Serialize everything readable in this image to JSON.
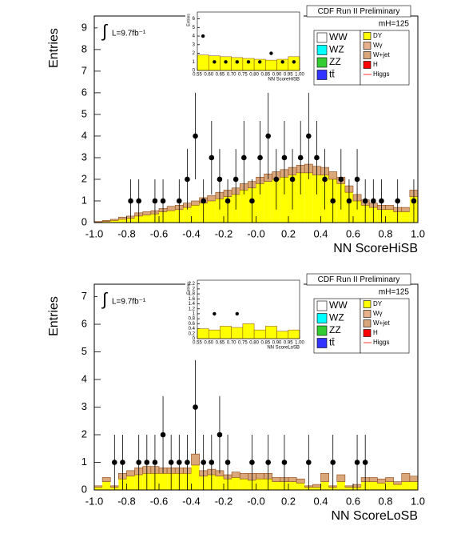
{
  "chart_data": [
    {
      "type": "stacked-histogram",
      "header": "CDF Run II Preliminary",
      "lumi_symbol": "∫",
      "lumi": "L=9.7fb⁻¹",
      "mass": "mH=125",
      "x_label": "NN ScoreHiSB",
      "y_label": "Entries",
      "xlim": [
        -1,
        1
      ],
      "xticks": [
        {
          "value": -1,
          "label": "-1.0"
        },
        -0.8,
        -0.6,
        -0.4,
        -0.2,
        {
          "value": 0,
          "label": "-0.0"
        },
        0.2,
        0.4,
        0.6,
        0.8,
        {
          "value": 1,
          "label": "1.0"
        }
      ],
      "ylim": [
        0,
        9.55
      ],
      "yticks": [
        0,
        1,
        2,
        3,
        4,
        5,
        6,
        7,
        8,
        9
      ],
      "bins": [
        -1,
        -0.95,
        -0.9,
        -0.85,
        -0.8,
        -0.75,
        -0.7,
        -0.65,
        -0.6,
        -0.55,
        -0.5,
        -0.45,
        -0.4,
        -0.35,
        -0.3,
        -0.25,
        -0.2,
        -0.15,
        -0.1,
        -0.05,
        0,
        0.05,
        0.1,
        0.15,
        0.2,
        0.25,
        0.3,
        0.35,
        0.4,
        0.45,
        0.5,
        0.55,
        0.6,
        0.65,
        0.7,
        0.75,
        0.8,
        0.85,
        0.9,
        0.95,
        1
      ],
      "series": [
        {
          "name": "DY",
          "color": "#ffff00",
          "values": [
            0.02,
            0.05,
            0.1,
            0.15,
            0.2,
            0.3,
            0.35,
            0.4,
            0.5,
            0.55,
            0.6,
            0.7,
            0.8,
            0.9,
            1.0,
            1.1,
            1.2,
            1.3,
            1.5,
            1.6,
            1.8,
            1.9,
            2.0,
            2.1,
            2.2,
            2.3,
            2.3,
            2.2,
            2.2,
            2.0,
            1.8,
            1.4,
            1.0,
            0.8,
            0.7,
            0.6,
            0.6,
            0.5,
            0.5,
            1.2
          ]
        },
        {
          "name": "W+jet",
          "color": "#d9a77a",
          "values": [
            0.03,
            0.05,
            0.05,
            0.1,
            0.1,
            0.15,
            0.15,
            0.15,
            0.15,
            0.2,
            0.2,
            0.2,
            0.2,
            0.25,
            0.25,
            0.3,
            0.3,
            0.3,
            0.3,
            0.3,
            0.3,
            0.35,
            0.35,
            0.35,
            0.35,
            0.35,
            0.4,
            0.4,
            0.35,
            0.35,
            0.3,
            0.3,
            0.3,
            0.25,
            0.2,
            0.2,
            0.2,
            0.2,
            0.2,
            0.3
          ]
        }
      ],
      "data": {
        "values": [
          null,
          null,
          null,
          null,
          1,
          1,
          null,
          1,
          1,
          null,
          1,
          2,
          4,
          1,
          3,
          2,
          1,
          2,
          3,
          1,
          3,
          4,
          2,
          3,
          2,
          3,
          4,
          3,
          2,
          1,
          2,
          1,
          2,
          1,
          1,
          1,
          null,
          1,
          null,
          1
        ],
        "errors": [
          null,
          null,
          null,
          null,
          1,
          1,
          null,
          1,
          1,
          null,
          1,
          1.4,
          2,
          1,
          1.7,
          1.4,
          1,
          1.4,
          1.7,
          1,
          1.7,
          2,
          1.4,
          1.7,
          1.4,
          1.7,
          2,
          1.7,
          1.4,
          1,
          1.4,
          1,
          1.4,
          1,
          1,
          1,
          null,
          1,
          null,
          1
        ]
      },
      "legend": [
        {
          "name": "WW",
          "color": "#ffffff"
        },
        {
          "name": "WZ",
          "color": "#00ffff"
        },
        {
          "name": "ZZ",
          "color": "#33cc33"
        },
        {
          "name": "tt̄",
          "color": "#3333ff"
        },
        {
          "name": "DY",
          "color": "#ffff00"
        },
        {
          "name": "Wγ",
          "color": "#e8b08a"
        },
        {
          "name": "W+jet",
          "color": "#d9a77a"
        },
        {
          "name": "H",
          "color": "#ff0000"
        },
        {
          "name": "Higgs",
          "color": "#ff0000",
          "style": "line"
        }
      ],
      "inset": {
        "x_label": "NN ScoreHiSB",
        "y_label": "Entries",
        "color": "#ffff00",
        "xlim": [
          0.55,
          1
        ],
        "xticks": [
          0.55,
          {
            "value": 0.6,
            "label": "0.60"
          },
          0.65,
          {
            "value": 0.7,
            "label": "0.70"
          },
          0.75,
          {
            "value": 0.8,
            "label": "0.80"
          },
          0.85,
          {
            "value": 0.9,
            "label": "0.90"
          },
          0.95,
          {
            "value": 1,
            "label": "1.00"
          }
        ],
        "ylim": [
          0,
          6.8
        ],
        "yticks": [
          0,
          1,
          2,
          3,
          4,
          5,
          6
        ],
        "bins": [
          0.55,
          0.6,
          0.65,
          0.7,
          0.75,
          0.8,
          0.85,
          0.9,
          0.95,
          1
        ],
        "values": [
          1.8,
          1.7,
          1.6,
          1.5,
          1.4,
          1.3,
          1.2,
          1.3,
          1.6
        ],
        "data": [
          4,
          1,
          1,
          1,
          1,
          1,
          2,
          1,
          1
        ]
      }
    },
    {
      "type": "stacked-histogram",
      "header": "CDF Run II Preliminary",
      "lumi_symbol": "∫",
      "lumi": "L=9.7fb⁻¹",
      "mass": "mH=125",
      "x_label": "NN ScoreLoSB",
      "y_label": "Entries",
      "xlim": [
        -1,
        1
      ],
      "xticks": [
        {
          "value": -1,
          "label": "-1.0"
        },
        -0.8,
        -0.6,
        -0.4,
        -0.2,
        {
          "value": 0,
          "label": "-0.0"
        },
        0.2,
        0.4,
        0.6,
        0.8,
        {
          "value": 1,
          "label": "1.0"
        }
      ],
      "ylim": [
        0,
        7.45
      ],
      "yticks": [
        0,
        1,
        2,
        3,
        4,
        5,
        6,
        7
      ],
      "bins": [
        -1,
        -0.95,
        -0.9,
        -0.85,
        -0.8,
        -0.75,
        -0.7,
        -0.65,
        -0.6,
        -0.55,
        -0.5,
        -0.45,
        -0.4,
        -0.35,
        -0.3,
        -0.25,
        -0.2,
        -0.15,
        -0.1,
        -0.05,
        0,
        0.05,
        0.1,
        0.15,
        0.2,
        0.25,
        0.3,
        0.35,
        0.4,
        0.45,
        0.5,
        0.55,
        0.6,
        0.65,
        0.7,
        0.75,
        0.8,
        0.85,
        0.9,
        0.95,
        1
      ],
      "series": [
        {
          "name": "DY",
          "color": "#ffff00",
          "values": [
            0.1,
            0.3,
            0.1,
            0.4,
            0.5,
            0.55,
            0.6,
            0.6,
            0.6,
            0.6,
            0.6,
            0.6,
            0.9,
            0.5,
            0.55,
            0.5,
            0.4,
            0.45,
            0.4,
            0.35,
            0.4,
            0.4,
            0.3,
            0.3,
            0.3,
            0.25,
            0.1,
            0.1,
            0.3,
            0.1,
            0.3,
            0.1,
            0.1,
            0.3,
            0.3,
            0.25,
            0.3,
            0.2,
            0.3,
            0.3
          ]
        },
        {
          "name": "W+jet",
          "color": "#d9a77a",
          "values": [
            0.05,
            0.15,
            0.05,
            0.2,
            0.2,
            0.25,
            0.25,
            0.25,
            0.2,
            0.2,
            0.2,
            0.2,
            0.4,
            0.2,
            0.2,
            0.2,
            0.15,
            0.2,
            0.2,
            0.25,
            0.2,
            0.2,
            0.15,
            0.15,
            0.15,
            0.15,
            0.05,
            0.1,
            0.3,
            0.05,
            0.25,
            0.05,
            0.1,
            0.15,
            0.15,
            0.15,
            0.15,
            0.1,
            0.3,
            0.2
          ]
        }
      ],
      "data": {
        "values": [
          null,
          null,
          1,
          1,
          null,
          1,
          1,
          1,
          2,
          1,
          1,
          1,
          3,
          1,
          1,
          2,
          1,
          null,
          null,
          1,
          null,
          1,
          null,
          1,
          null,
          null,
          1,
          null,
          null,
          1,
          null,
          null,
          1,
          1,
          null,
          null,
          null,
          null,
          null,
          null
        ],
        "errors": [
          null,
          null,
          1,
          1,
          null,
          1,
          1,
          1,
          1.4,
          1,
          1,
          1,
          1.7,
          1,
          1,
          1.4,
          1,
          null,
          null,
          1,
          null,
          1,
          null,
          1,
          null,
          null,
          1,
          null,
          null,
          1,
          null,
          null,
          1,
          1,
          null,
          null,
          null,
          null,
          null,
          null
        ]
      },
      "legend": [
        {
          "name": "WW",
          "color": "#ffffff"
        },
        {
          "name": "WZ",
          "color": "#00ffff"
        },
        {
          "name": "ZZ",
          "color": "#33cc33"
        },
        {
          "name": "tt̄",
          "color": "#3333ff"
        },
        {
          "name": "DY",
          "color": "#ffff00"
        },
        {
          "name": "Wγ",
          "color": "#e8b08a"
        },
        {
          "name": "W+jet",
          "color": "#d9a77a"
        },
        {
          "name": "H",
          "color": "#ff0000"
        },
        {
          "name": "Higgs",
          "color": "#ff0000",
          "style": "line"
        }
      ],
      "inset": {
        "x_label": "NN ScoreLoSB",
        "y_label": "Entries",
        "color": "#ffff00",
        "xlim": [
          0.55,
          1
        ],
        "xticks": [
          0.55,
          {
            "value": 0.6,
            "label": "0.60"
          },
          0.65,
          {
            "value": 0.7,
            "label": "0.70"
          },
          0.75,
          {
            "value": 0.8,
            "label": "0.80"
          },
          0.85,
          {
            "value": 0.9,
            "label": "0.90"
          },
          0.95,
          {
            "value": 1,
            "label": "1.00"
          }
        ],
        "ylim": [
          0,
          2.35
        ],
        "yticks": [
          0,
          0.2,
          0.4,
          0.6,
          0.8,
          1,
          1.2,
          1.4,
          1.6,
          1.8,
          2,
          2.2
        ],
        "bins": [
          0.55,
          0.6,
          0.65,
          0.7,
          0.75,
          0.8,
          0.85,
          0.9,
          0.95,
          1
        ],
        "values": [
          0.4,
          0.35,
          0.5,
          0.45,
          0.6,
          0.35,
          0.5,
          0.3,
          0.35
        ],
        "data": [
          null,
          1,
          null,
          1,
          null,
          null,
          null,
          null,
          null
        ]
      }
    }
  ]
}
